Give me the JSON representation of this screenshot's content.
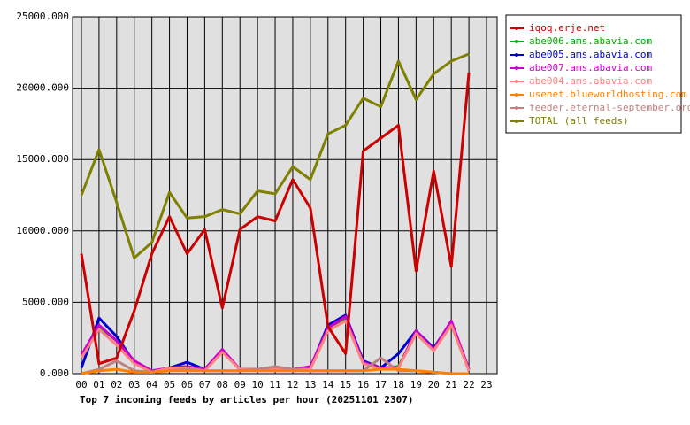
{
  "chart_data": {
    "type": "line",
    "title": "Top 7 incoming feeds by articles per hour (20251101 2307)",
    "categories": [
      "00",
      "01",
      "02",
      "03",
      "04",
      "05",
      "06",
      "07",
      "08",
      "09",
      "10",
      "11",
      "12",
      "13",
      "14",
      "15",
      "16",
      "17",
      "18",
      "19",
      "20",
      "21",
      "22",
      "23"
    ],
    "ylim": [
      0,
      25000
    ],
    "yticks": [
      {
        "value": 0,
        "label": "0.000"
      },
      {
        "value": 5000,
        "label": "5000.000"
      },
      {
        "value": 10000,
        "label": "10000.000"
      },
      {
        "value": 15000,
        "label": "15000.000"
      },
      {
        "value": 20000,
        "label": "20000.000"
      },
      {
        "value": 25000,
        "label": "25000.000"
      }
    ],
    "grid": true,
    "series": [
      {
        "name": "TOTAL (all feeds)",
        "color": "#808000",
        "values": [
          12500,
          15700,
          12000,
          8100,
          9200,
          12700,
          10900,
          11000,
          11500,
          11200,
          12800,
          12600,
          14500,
          13600,
          16800,
          17400,
          19300,
          18700,
          21900,
          19200,
          21000,
          21900,
          22400,
          null
        ]
      },
      {
        "name": "abe006.ams.abavia.com",
        "color": "#00aa00",
        "values": [
          1200,
          3300,
          2300,
          800,
          100,
          400,
          500,
          300,
          1600,
          300,
          300,
          300,
          300,
          400,
          3200,
          3900,
          800,
          400,
          500,
          2900,
          1700,
          3500,
          300,
          null
        ]
      },
      {
        "name": "abe005.ams.abavia.com",
        "color": "#0000cc",
        "values": [
          400,
          3900,
          2600,
          800,
          100,
          400,
          800,
          300,
          1600,
          300,
          300,
          300,
          300,
          400,
          3400,
          4100,
          900,
          400,
          1400,
          3000,
          1800,
          3600,
          300,
          null
        ]
      },
      {
        "name": "abe007.ams.abavia.com",
        "color": "#cc00cc",
        "values": [
          1300,
          3400,
          2300,
          900,
          200,
          400,
          500,
          300,
          1700,
          300,
          300,
          300,
          300,
          500,
          3200,
          4000,
          800,
          400,
          400,
          3000,
          1700,
          3700,
          300,
          null
        ]
      },
      {
        "name": "abe004.ams.abavia.com",
        "color": "#ff8080",
        "values": [
          1100,
          3100,
          2000,
          700,
          100,
          400,
          400,
          200,
          1500,
          300,
          300,
          300,
          300,
          300,
          3000,
          3700,
          700,
          300,
          400,
          2800,
          1600,
          3400,
          200,
          null
        ]
      },
      {
        "name": "feeder.eternal-september.org",
        "color": "#c08080",
        "values": [
          0,
          300,
          900,
          200,
          100,
          200,
          300,
          200,
          200,
          200,
          300,
          500,
          300,
          200,
          200,
          200,
          200,
          1100,
          200,
          200,
          100,
          0,
          0,
          null
        ]
      },
      {
        "name": "usenet.blueworldhosting.com",
        "color": "#ff8000",
        "values": [
          0,
          200,
          300,
          100,
          100,
          200,
          200,
          200,
          200,
          200,
          200,
          200,
          200,
          200,
          200,
          200,
          200,
          300,
          300,
          200,
          100,
          0,
          0,
          null
        ]
      },
      {
        "name": "iqoq.erje.net",
        "color": "#cc0000",
        "values": [
          8400,
          700,
          1100,
          4400,
          8400,
          11000,
          8400,
          10100,
          4600,
          10100,
          11000,
          10700,
          13600,
          11600,
          3300,
          1400,
          15600,
          16500,
          17400,
          7200,
          14200,
          7500,
          21100,
          null
        ]
      }
    ],
    "legend_order": [
      7,
      1,
      2,
      3,
      4,
      6,
      5,
      0
    ]
  }
}
